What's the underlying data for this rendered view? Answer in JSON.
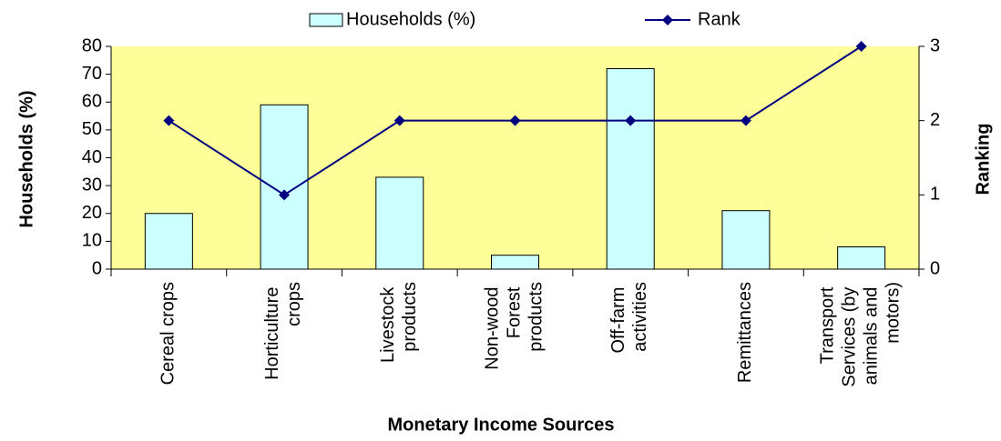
{
  "chart_data": {
    "type": "bar",
    "x_label": "Monetary Income Sources",
    "y_label": "Households (%)",
    "y2_label": "Ranking",
    "categories": [
      "Cereal crops",
      "Horticulture crops",
      "Livestock products",
      "Non-wood Forest products",
      "Off-farm activities",
      "Remittances",
      "Transport Services (by animals and motors)"
    ],
    "series": [
      {
        "name": "Households (%)",
        "type": "bar",
        "color": "#ccffff",
        "values": [
          20,
          59,
          33,
          5,
          72,
          21,
          8
        ]
      },
      {
        "name": "Rank",
        "type": "line",
        "axis": "y2",
        "color": "#000080",
        "values": [
          2,
          1,
          2,
          2,
          2,
          2,
          3
        ]
      }
    ],
    "ylim": [
      0,
      80
    ],
    "yticks": [
      0,
      10,
      20,
      30,
      40,
      50,
      60,
      70,
      80
    ],
    "y2lim": [
      0,
      3
    ],
    "y2ticks": [
      0,
      1,
      2,
      3
    ],
    "plot_background": "#ffff99",
    "legend": "top"
  }
}
